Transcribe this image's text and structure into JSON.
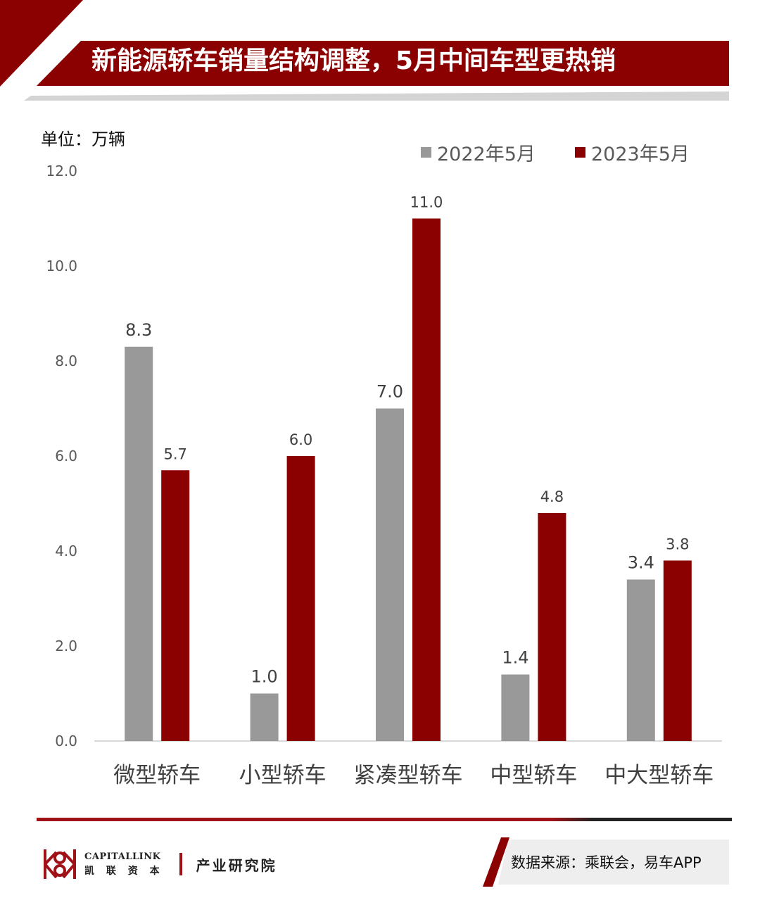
{
  "header": {
    "title": "新能源轿车销量结构调整，5月中间车型更热销"
  },
  "unit_label": "单位：万辆",
  "colors": {
    "brand_red": "#8b0000",
    "series_2022": "#999999",
    "series_2023": "#8b0000",
    "shadow_gray": "#d4d4d4"
  },
  "chart_data": {
    "type": "bar",
    "categories": [
      "微型轿车",
      "小型轿车",
      "紧凑型轿车",
      "中型轿车",
      "中大型轿车"
    ],
    "series": [
      {
        "name": "2022年5月",
        "values": [
          8.3,
          1.0,
          7.0,
          1.4,
          3.4
        ]
      },
      {
        "name": "2023年5月",
        "values": [
          5.7,
          6.0,
          11.0,
          4.8,
          3.8
        ]
      }
    ],
    "ylim": [
      0,
      12
    ],
    "yticks": [
      "0.0",
      "2.0",
      "4.0",
      "6.0",
      "8.0",
      "10.0",
      "12.0"
    ],
    "legend_position": "top-right",
    "grid": false
  },
  "footer": {
    "brand_en": "CAPITALLINK",
    "brand_cn": "凯 联 资 本",
    "department": "产业研究院",
    "source": "数据来源：乘联会，易车APP"
  }
}
